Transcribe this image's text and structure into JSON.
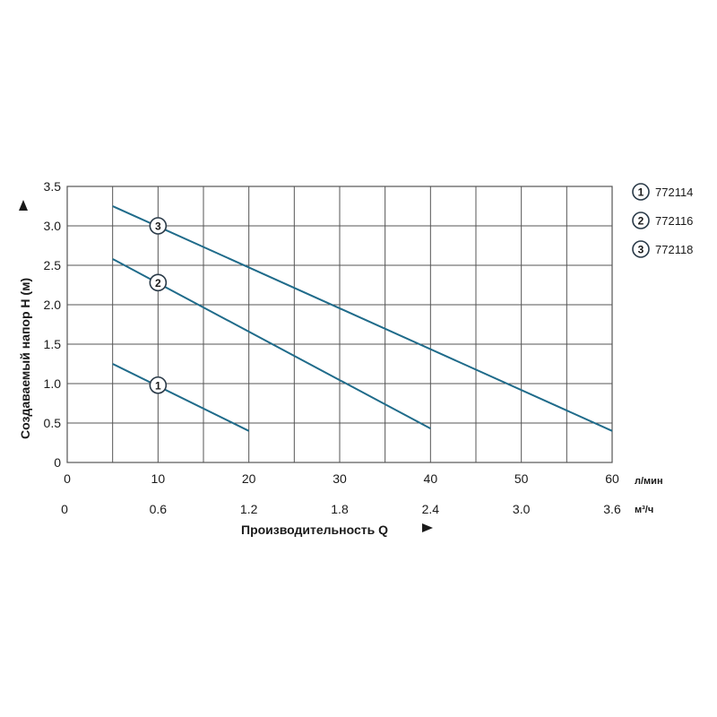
{
  "chart_data": {
    "type": "line",
    "ylabel": "Создаваемый напор H (м)",
    "xlabel": "Производительность Q",
    "ylim": [
      0,
      3.5
    ],
    "xlim": [
      0,
      60
    ],
    "grid": true,
    "y_ticks": [
      "0",
      "0.5",
      "1.0",
      "1.5",
      "2.0",
      "2.5",
      "3.0",
      "3.5"
    ],
    "x_ticks_lmin": [
      "0",
      "10",
      "20",
      "30",
      "40",
      "50",
      "60"
    ],
    "x_unit_lmin": "л/мин",
    "x_ticks_m3h": [
      "0",
      "0.6",
      "1.2",
      "1.8",
      "2.4",
      "3.0",
      "3.6"
    ],
    "x_unit_m3h": "м³/ч",
    "series": [
      {
        "id": "1",
        "name": "772114",
        "x": [
          5,
          20
        ],
        "y": [
          1.25,
          0.4
        ],
        "marker_at": [
          10,
          0.98
        ]
      },
      {
        "id": "2",
        "name": "772116",
        "x": [
          5,
          40
        ],
        "y": [
          2.58,
          0.43
        ],
        "marker_at": [
          10,
          2.28
        ]
      },
      {
        "id": "3",
        "name": "772118",
        "x": [
          5,
          60
        ],
        "y": [
          3.25,
          0.4
        ],
        "marker_at": [
          10,
          3.0
        ]
      }
    ],
    "legend_position": "right"
  },
  "colors": {
    "line": "#1f6b8a",
    "grid": "#555555",
    "text": "#1a1a1a"
  }
}
